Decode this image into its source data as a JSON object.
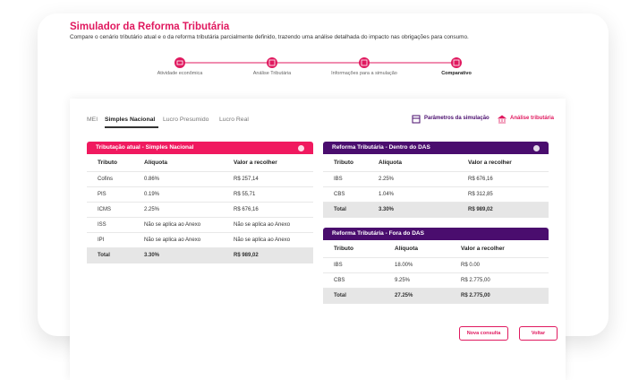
{
  "header": {
    "title": "Simulador da Reforma Tributária",
    "subtitle": "Compare o cenário tributário atual e o da reforma tributária parcialmente definido, trazendo uma análise detalhada do impacto nas obrigações para consumo."
  },
  "steps": [
    "Atividade econômica",
    "Análise Tributária",
    "Informações para a simulação",
    "Comparativo"
  ],
  "tabs": [
    "MEI",
    "Simples Nacional",
    "Lucro Presumido",
    "Lucro Real"
  ],
  "actions": [
    "Parâmetros da simulação",
    "Análise tributária"
  ],
  "tables": [
    {
      "title": "Tributação atual - Simples Nacional",
      "columns": [
        "Tributo",
        "Alíquota",
        "Valor a recolher"
      ],
      "rows": [
        [
          "Cofins",
          "0.86%",
          "R$ 257,14"
        ],
        [
          "PIS",
          "0.19%",
          "R$ 55,71"
        ],
        [
          "ICMS",
          "2.25%",
          "R$ 676,16"
        ],
        [
          "ISS",
          "Não se aplica ao Anexo",
          "Não se aplica ao Anexo"
        ],
        [
          "IPI",
          "Não se aplica ao Anexo",
          "Não se aplica ao Anexo"
        ],
        [
          "Total",
          "3.30%",
          "R$ 989,02"
        ]
      ]
    },
    {
      "title": "Reforma Tributária - Dentro do DAS",
      "columns": [
        "Tributo",
        "Alíquota",
        "Valor a recolher"
      ],
      "rows": [
        [
          "IBS",
          "2.25%",
          "R$ 676,16"
        ],
        [
          "CBS",
          "1.04%",
          "R$ 312,85"
        ],
        [
          "Total",
          "3.30%",
          "R$ 989,02"
        ]
      ]
    },
    {
      "title": "Reforma Tributária - Fora do DAS",
      "columns": [
        "Tributo",
        "Alíquota",
        "Valor a recolher"
      ],
      "rows": [
        [
          "IBS",
          "18.00%",
          "R$ 0.00"
        ],
        [
          "CBS",
          "9.25%",
          "R$ 2.775,00"
        ],
        [
          "Total",
          "27.25%",
          "R$ 2.775,00"
        ]
      ]
    }
  ],
  "buttons": [
    "Nova consulta",
    "Voltar"
  ]
}
